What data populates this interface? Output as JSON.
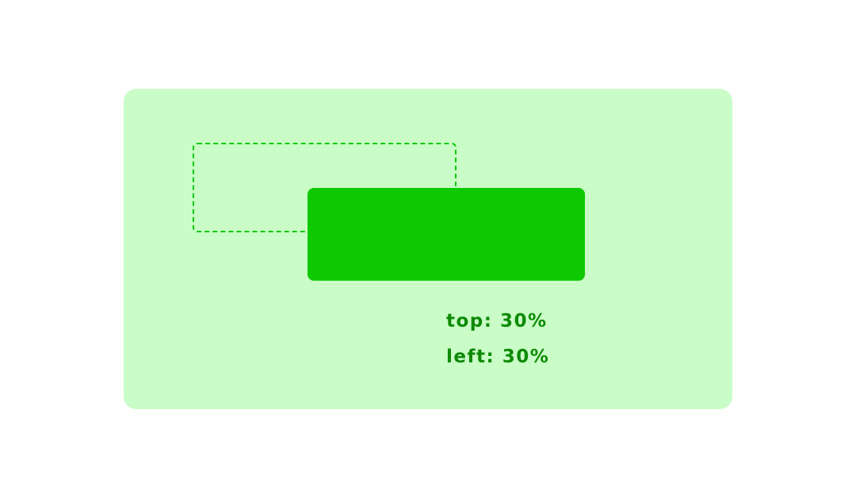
{
  "colors": {
    "panel_background": "#c9fcc6",
    "dashed_outline": "#12c80a",
    "moved_box": "#0fc900",
    "label_text": "#0d8a06"
  },
  "labels": {
    "top": "top: 30%",
    "left": "left: 30%"
  }
}
